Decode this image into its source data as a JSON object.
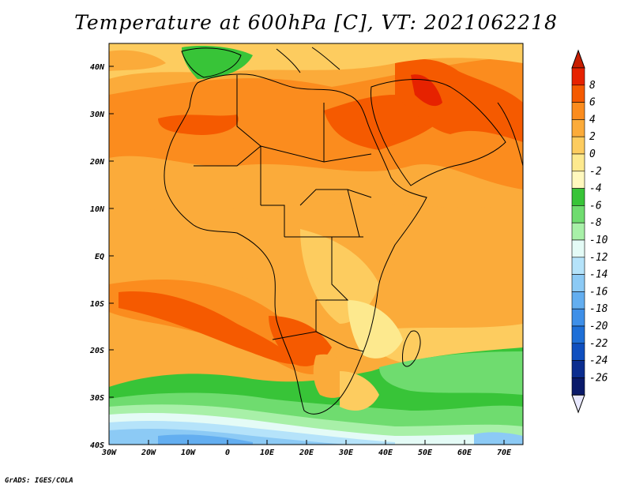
{
  "title": "Temperature at 600hPa [C], VT: 2021062218",
  "credit": "GrADS: IGES/COLA",
  "map": {
    "lat_labels": [
      "40N",
      "30N",
      "20N",
      "10N",
      "EQ",
      "10S",
      "20S",
      "30S",
      "40S"
    ],
    "lon_labels": [
      "30W",
      "20W",
      "10W",
      "0",
      "10E",
      "20E",
      "30E",
      "40E",
      "50E",
      "60E",
      "70E"
    ]
  },
  "colorbar": {
    "labels": [
      "8",
      "6",
      "4",
      "2",
      "0",
      "-2",
      "-4",
      "-6",
      "-8",
      "-10",
      "-12",
      "-14",
      "-16",
      "-18",
      "-20",
      "-22",
      "-24",
      "-26"
    ],
    "colors": [
      "#e62200",
      "#f55a00",
      "#fb8c1e",
      "#fbab3a",
      "#fdcc5f",
      "#fde98e",
      "#fff8be",
      "#38c438",
      "#6fdc6f",
      "#a8f0a8",
      "#e4fbf6",
      "#b5e3fa",
      "#8ccaf5",
      "#63aef0",
      "#3e8fe8",
      "#1e6fd7",
      "#0f4fbf",
      "#0b2d8f",
      "#0a1a6a"
    ],
    "arrow_top_color": "#c81e00",
    "arrow_bottom_color": "#e8e8ff"
  }
}
